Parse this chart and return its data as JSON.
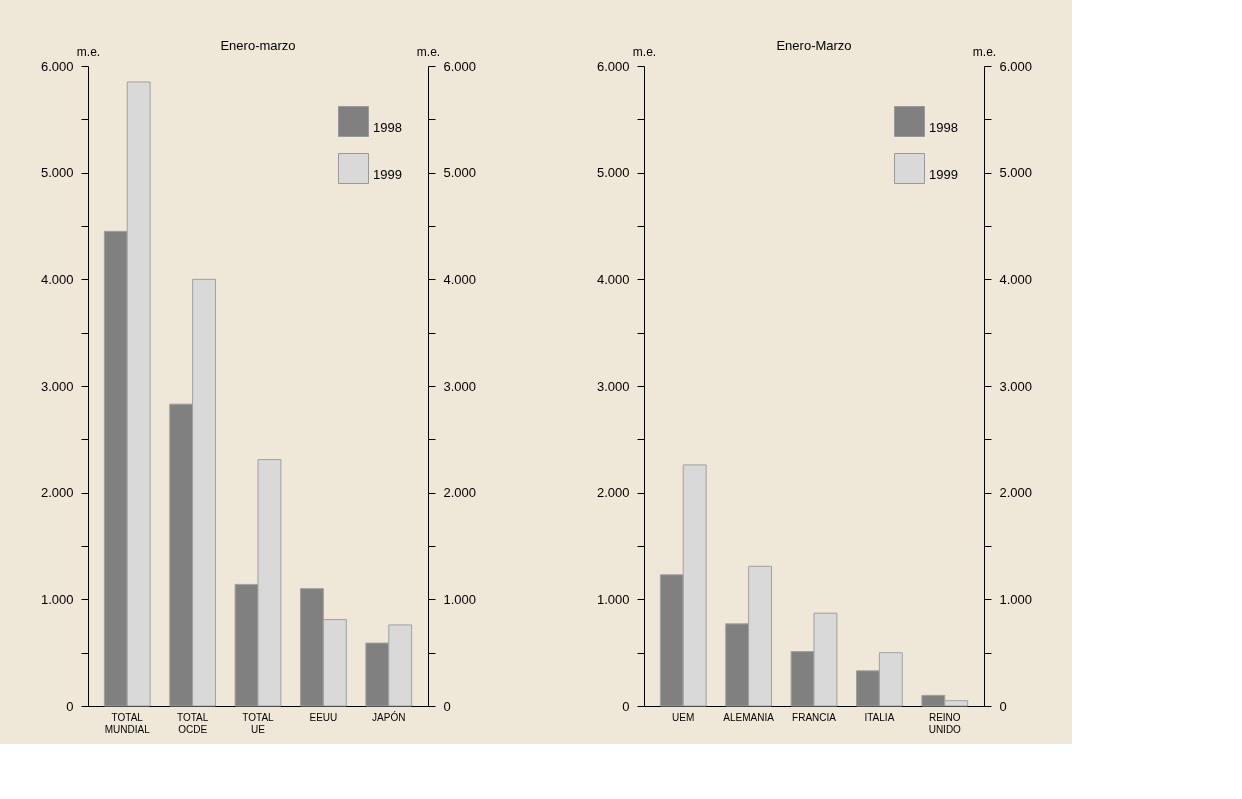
{
  "chart_data": [
    {
      "type": "bar",
      "title": "Enero-marzo",
      "ylabel": "m.e.",
      "y2label": "m.e.",
      "categories": [
        "TOTAL MUNDIAL",
        "TOTAL OCDE",
        "TOTAL UE",
        "EEUU",
        "JAPÓN"
      ],
      "series": [
        {
          "name": "1998",
          "color": "#808080",
          "values": [
            4450,
            2830,
            1140,
            1100,
            590
          ]
        },
        {
          "name": "1999",
          "color": "#d9d9d9",
          "values": [
            5850,
            4000,
            2310,
            810,
            760
          ]
        }
      ],
      "ylim": [
        0,
        6000
      ],
      "yticks": [
        0,
        {
          "value": 500,
          "label": null
        },
        {
          "value": 1000,
          "label": "1.000"
        },
        {
          "value": 1500,
          "label": null
        },
        {
          "value": 2000,
          "label": "2.000"
        },
        {
          "value": 2500,
          "label": null
        },
        {
          "value": 3000,
          "label": "3.000"
        },
        {
          "value": 3500,
          "label": null
        },
        {
          "value": 4000,
          "label": "4.000"
        },
        {
          "value": 4500,
          "label": null
        },
        {
          "value": 5000,
          "label": "5.000"
        },
        {
          "value": 5500,
          "label": null
        },
        {
          "value": 6000,
          "label": "6.000"
        }
      ],
      "y2lim": [
        0,
        6000
      ],
      "y2ticks": [
        0,
        {
          "value": 500,
          "label": null
        },
        {
          "value": 1000,
          "label": "1.000"
        },
        {
          "value": 1500,
          "label": null
        },
        {
          "value": 2000,
          "label": "2.000"
        },
        {
          "value": 2500,
          "label": null
        },
        {
          "value": 3000,
          "label": "3.000"
        },
        {
          "value": 3500,
          "label": null
        },
        {
          "value": 4000,
          "label": "4.000"
        },
        {
          "value": 4500,
          "label": null
        },
        {
          "value": 5000,
          "label": "5.000"
        },
        {
          "value": 5500,
          "label": null
        },
        {
          "value": 6000,
          "label": "6.000"
        }
      ],
      "grid": false,
      "legend": "top right"
    },
    {
      "type": "bar",
      "title": "Enero-Marzo",
      "ylabel": "m.e.",
      "y2label": "m.e.",
      "categories": [
        "UEM",
        "ALEMANIA",
        "FRANCIA",
        "ITALIA",
        "REINO UNIDO"
      ],
      "series": [
        {
          "name": "1998",
          "color": "#808080",
          "values": [
            1230,
            770,
            510,
            330,
            100
          ]
        },
        {
          "name": "1999",
          "color": "#d9d9d9",
          "values": [
            2260,
            1310,
            870,
            500,
            50
          ]
        }
      ],
      "ylim": [
        0,
        6000
      ],
      "yticks": [
        0,
        {
          "value": 500,
          "label": null
        },
        {
          "value": 1000,
          "label": "1.000"
        },
        {
          "value": 1500,
          "label": null
        },
        {
          "value": 2000,
          "label": "2.000"
        },
        {
          "value": 2500,
          "label": null
        },
        {
          "value": 3000,
          "label": "3.000"
        },
        {
          "value": 3500,
          "label": null
        },
        {
          "value": 4000,
          "label": "4.000"
        },
        {
          "value": 4500,
          "label": null
        },
        {
          "value": 5000,
          "label": "5.000"
        },
        {
          "value": 5500,
          "label": null
        },
        {
          "value": 6000,
          "label": "6.000"
        }
      ],
      "y2lim": [
        0,
        6000
      ],
      "y2ticks": [
        0,
        {
          "value": 500,
          "label": null
        },
        {
          "value": 1000,
          "label": "1.000"
        },
        {
          "value": 1500,
          "label": null
        },
        {
          "value": 2000,
          "label": "2.000"
        },
        {
          "value": 2500,
          "label": null
        },
        {
          "value": 3000,
          "label": "3.000"
        },
        {
          "value": 3500,
          "label": null
        },
        {
          "value": 4000,
          "label": "4.000"
        },
        {
          "value": 4500,
          "label": null
        },
        {
          "value": 5000,
          "label": "5.000"
        },
        {
          "value": 5500,
          "label": null
        },
        {
          "value": 6000,
          "label": "6.000"
        }
      ],
      "grid": false,
      "legend": "top right"
    }
  ]
}
